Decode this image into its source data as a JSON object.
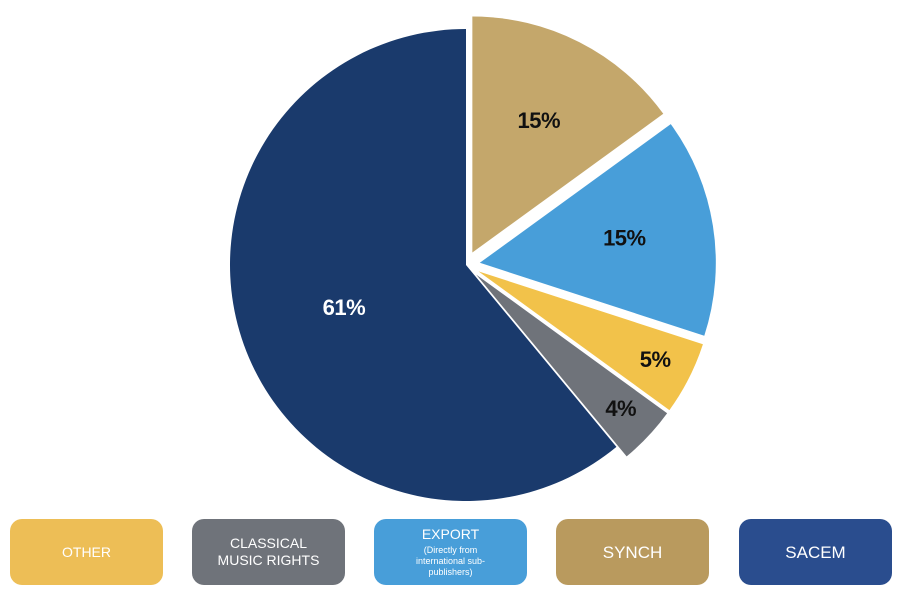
{
  "chart_data": {
    "type": "pie",
    "title": "",
    "slices": [
      {
        "name": "SYNCH",
        "value": 15,
        "label": "15%",
        "color": "#C4A76B",
        "label_color": "#111111",
        "exploded": true
      },
      {
        "name": "EXPORT",
        "value": 15,
        "label": "15%",
        "color": "#489ED9",
        "label_color": "#111111",
        "exploded": true
      },
      {
        "name": "OTHER",
        "value": 5,
        "label": "5%",
        "color": "#F2C24A",
        "label_color": "#111111",
        "exploded": true
      },
      {
        "name": "CLASSICAL MUSIC RIGHTS",
        "value": 4,
        "label": "4%",
        "color": "#6F737A",
        "label_color": "#111111",
        "exploded": true
      },
      {
        "name": "SACEM",
        "value": 61,
        "label": "61%",
        "color": "#1A3A6C",
        "label_color": "#ffffff",
        "exploded": false
      }
    ],
    "legend": {
      "placement": "bottom",
      "items": [
        {
          "label": "OTHER",
          "sub": "",
          "color": "#EDBE56"
        },
        {
          "label": "CLASSICAL MUSIC RIGHTS",
          "sub": "",
          "color": "#6F737A"
        },
        {
          "label": "EXPORT",
          "sub": "(Directly from international sub-publishers)",
          "color": "#489ED9"
        },
        {
          "label": "SYNCH",
          "sub": "",
          "color": "#B99A5E"
        },
        {
          "label": "SACEM",
          "sub": "",
          "color": "#2A4D8E"
        }
      ]
    }
  }
}
